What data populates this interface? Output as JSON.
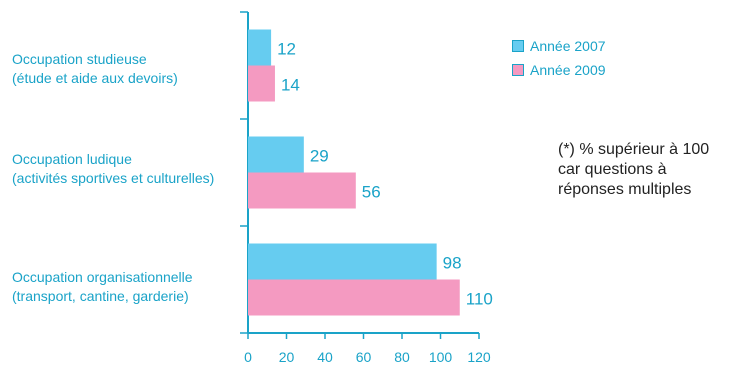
{
  "chart_data": {
    "type": "bar",
    "orientation": "horizontal",
    "categories": [
      {
        "line1": "Occupation studieuse",
        "line2": "(étude et aide aux devoirs)"
      },
      {
        "line1": "Occupation ludique",
        "line2": "(activités sportives et culturelles)"
      },
      {
        "line1": "Occupation organisationnelle",
        "line2": "(transport, cantine, garderie)"
      }
    ],
    "series": [
      {
        "name": "Année 2007",
        "values": [
          12,
          29,
          98
        ],
        "color": "#66ccf0"
      },
      {
        "name": "Année 2009",
        "values": [
          14,
          56,
          110
        ],
        "color": "#f49ac1"
      }
    ],
    "xlim": [
      0,
      120
    ],
    "xticks": [
      "0",
      "20",
      "40",
      "60",
      "80",
      "100",
      "120"
    ],
    "legend_position": "top-right",
    "note": [
      "(*) % supérieur à 100",
      "car questions à",
      "réponses multiples"
    ],
    "colors": {
      "axis": "#1aa3c8",
      "text": "#1aa3c8"
    }
  }
}
